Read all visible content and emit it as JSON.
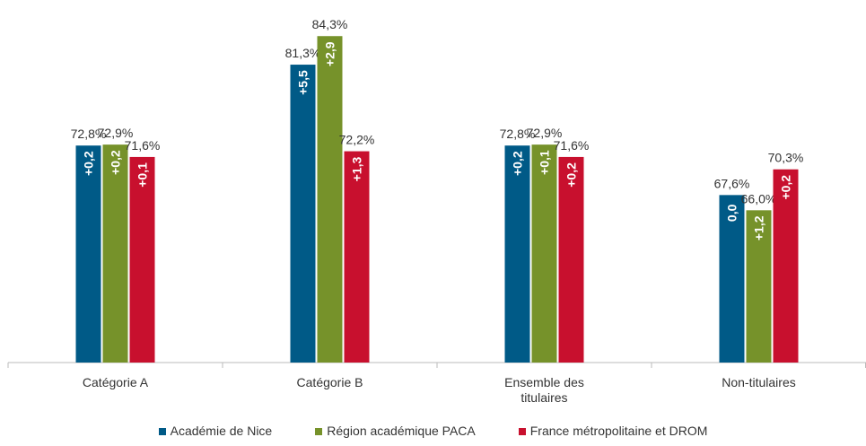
{
  "chart_data": {
    "type": "bar",
    "categories": [
      "Catégorie A",
      "Catégorie B",
      "Ensemble des titulaires",
      "Non-titulaires"
    ],
    "series": [
      {
        "name": "Académie de Nice",
        "color": "#005a87",
        "values": [
          72.8,
          81.3,
          72.8,
          67.6
        ],
        "value_labels": [
          "72,8%",
          "81,3%",
          "72,8%",
          "67,6%"
        ],
        "annotations": [
          "+0,2",
          "+5,5",
          "+0,2",
          "0,0"
        ]
      },
      {
        "name": "Région académique PACA",
        "color": "#76922a",
        "values": [
          72.9,
          84.3,
          72.9,
          66.0
        ],
        "value_labels": [
          "72,9%",
          "84,3%",
          "72,9%",
          "66,0%"
        ],
        "annotations": [
          "+0,2",
          "+2,9",
          "+0,1",
          "+1,2"
        ]
      },
      {
        "name": "France métropolitaine et DROM",
        "color": "#c8102e",
        "values": [
          71.6,
          72.2,
          71.6,
          70.3
        ],
        "value_labels": [
          "71,6%",
          "72,2%",
          "71,6%",
          "70,3%"
        ],
        "annotations": [
          "+0,1",
          "+1,3",
          "+0,2",
          "+0,2"
        ]
      }
    ],
    "ylim": [
      50,
      88
    ],
    "legend": "bottom"
  }
}
